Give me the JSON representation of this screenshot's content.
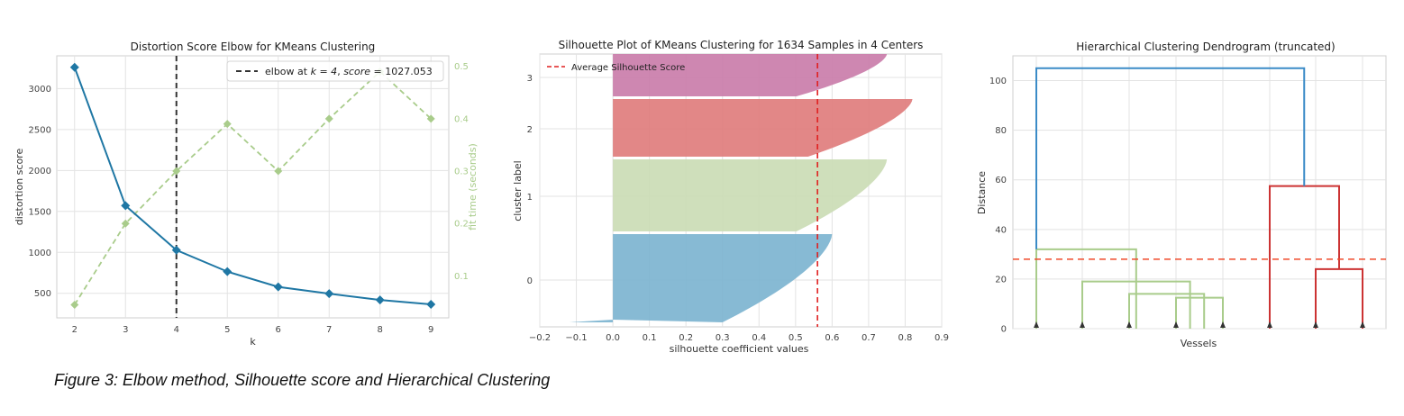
{
  "caption": "Figure 3: Elbow method, Silhouette score and Hierarchical Clustering",
  "chart_data": [
    {
      "type": "line",
      "title": "Distortion Score Elbow for KMeans Clustering",
      "xlabel": "k",
      "ylabel": "distortion score",
      "y2label": "fit time (seconds)",
      "x": [
        2,
        3,
        4,
        5,
        6,
        7,
        8,
        9
      ],
      "xticks": [
        "2",
        "3",
        "4",
        "5",
        "6",
        "7",
        "8",
        "9"
      ],
      "xlim": [
        1.65,
        9.35
      ],
      "ylim": [
        200,
        3400
      ],
      "yticks": [
        500,
        1000,
        1500,
        2000,
        2500,
        3000
      ],
      "ytick_labels": [
        "500",
        "1000",
        "1500",
        "2000",
        "2500",
        "3000"
      ],
      "y2lim": [
        0.02,
        0.52
      ],
      "y2ticks": [
        0.1,
        0.2,
        0.3,
        0.4,
        0.5
      ],
      "y2tick_labels": [
        "0.1",
        "0.2",
        "0.3",
        "0.4",
        "0.5"
      ],
      "series": [
        {
          "values": [
            3260,
            1570,
            1027.053,
            765,
            578,
            495,
            418,
            365
          ],
          "color": "#1f77a4",
          "axis": "left"
        },
        {
          "values": [
            0.045,
            0.2,
            0.3,
            0.39,
            0.3,
            0.4,
            0.49,
            0.4
          ],
          "color": "#a9cc8b",
          "axis": "right",
          "dashed": true
        }
      ],
      "elbow": {
        "k": 4,
        "legend_prefix": "elbow at ",
        "legend_k": "k = 4",
        "legend_mid": ", ",
        "legend_score_label": "score",
        "legend_score": " = 1027.053"
      },
      "grid": true,
      "legend_placement": "top-right"
    },
    {
      "type": "area",
      "title": "Silhouette Plot of KMeans Clustering for 1634 Samples in 4 Centers",
      "xlabel": "silhouette coefficient values",
      "ylabel": "cluster label",
      "xlim": [
        -0.2,
        0.9
      ],
      "xticks": [
        -0.2,
        -0.1,
        0.0,
        0.1,
        0.2,
        0.3,
        0.4,
        0.5,
        0.6,
        0.7,
        0.8,
        0.9
      ],
      "xtick_labels": [
        "−0.2",
        "−0.1",
        "0.0",
        "0.1",
        "0.2",
        "0.3",
        "0.4",
        "0.5",
        "0.6",
        "0.7",
        "0.8",
        "0.9"
      ],
      "cluster_labels": [
        "0",
        "1",
        "2",
        "3"
      ],
      "clusters": [
        {
          "label": "0",
          "color": "#7ab3cf",
          "max": 0.6,
          "min": -0.12
        },
        {
          "label": "1",
          "color": "#cadcb4",
          "max": 0.75,
          "min": 0.0
        },
        {
          "label": "2",
          "color": "#df7a7a",
          "max": 0.82,
          "min": 0.0
        },
        {
          "label": "3",
          "color": "#c97aa8",
          "max": 0.75,
          "min": 0.0
        }
      ],
      "average_score": 0.56,
      "legend": "Average Silhouette Score",
      "grid": true,
      "legend_placement": "top-left"
    },
    {
      "type": "dendrogram",
      "title": "Hierarchical Clustering Dendrogram (truncated)",
      "xlabel": "Vessels",
      "ylabel": "Distance",
      "ylim": [
        0,
        110
      ],
      "yticks": [
        0,
        20,
        40,
        60,
        80,
        100
      ],
      "ytick_labels": [
        "0",
        "20",
        "40",
        "60",
        "80",
        "100"
      ],
      "leaf_count": 8,
      "cut_height": 28,
      "links": [
        {
          "x1": 1,
          "x2": 3.15,
          "y1a": 0,
          "y1b": 0,
          "h": 32,
          "color": "#a9cc8b"
        },
        {
          "x1": 2,
          "x2": 4.3,
          "y1a": 0,
          "y1b": 0,
          "h": 19,
          "color": "#a9cc8b"
        },
        {
          "x1": 3,
          "x2": 4.6,
          "y1a": 0,
          "y1b": 0,
          "h": 14,
          "color": "#a9cc8b"
        },
        {
          "x1": 4,
          "x2": 5,
          "y1a": 0,
          "y1b": 0,
          "h": 12.5,
          "color": "#a9cc8b"
        },
        {
          "x1": 7,
          "x2": 8,
          "y1a": 0,
          "y1b": 0,
          "h": 24,
          "color": "#cc3333"
        },
        {
          "x1": 6,
          "x2": 7.5,
          "y1a": 0,
          "y1b": 24,
          "h": 57.5,
          "color": "#cc3333"
        },
        {
          "x1": 1,
          "x2": 6.75,
          "y1a": 32,
          "y1b": 57.5,
          "h": 105,
          "color": "#3b8bc7"
        }
      ],
      "grid": true
    }
  ]
}
